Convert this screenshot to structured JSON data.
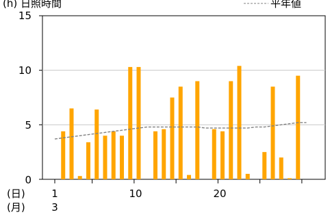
{
  "chart_data": {
    "type": "bar",
    "title": "(h) 日照時間",
    "legend": {
      "label": "平年値",
      "placement": "top-right"
    },
    "x_unit_label": "(日)",
    "month_unit_label": "(月)",
    "month_label": "3",
    "x_tick_labels": [
      "1",
      "10",
      "20"
    ],
    "y_tick_labels": [
      "0",
      "5",
      "10",
      "15"
    ],
    "ylim": [
      0,
      15
    ],
    "days": [
      1,
      2,
      3,
      4,
      5,
      6,
      7,
      8,
      9,
      10,
      11,
      12,
      13,
      14,
      15,
      16,
      17,
      18,
      19,
      20,
      21,
      22,
      23,
      24,
      25,
      26,
      27,
      28,
      29,
      30,
      31
    ],
    "series": [
      {
        "values": [
          0,
          4.4,
          6.5,
          0.3,
          3.4,
          6.4,
          4.0,
          4.4,
          4.0,
          10.3,
          10.3,
          0,
          4.4,
          4.6,
          7.5,
          8.5,
          0.4,
          9.0,
          0,
          4.6,
          4.4,
          9.0,
          10.4,
          0.5,
          0,
          2.5,
          8.5,
          2.0,
          0.1,
          9.5,
          0
        ],
        "color": "#ffa500"
      },
      {
        "values": [
          3.7,
          3.8,
          3.9,
          4.0,
          4.1,
          4.2,
          4.3,
          4.4,
          4.5,
          4.6,
          4.7,
          4.8,
          4.8,
          4.8,
          4.8,
          4.8,
          4.8,
          4.8,
          4.7,
          4.7,
          4.7,
          4.7,
          4.7,
          4.7,
          4.8,
          4.8,
          4.9,
          5.0,
          5.1,
          5.2,
          5.2
        ],
        "color": "#808080"
      }
    ]
  }
}
